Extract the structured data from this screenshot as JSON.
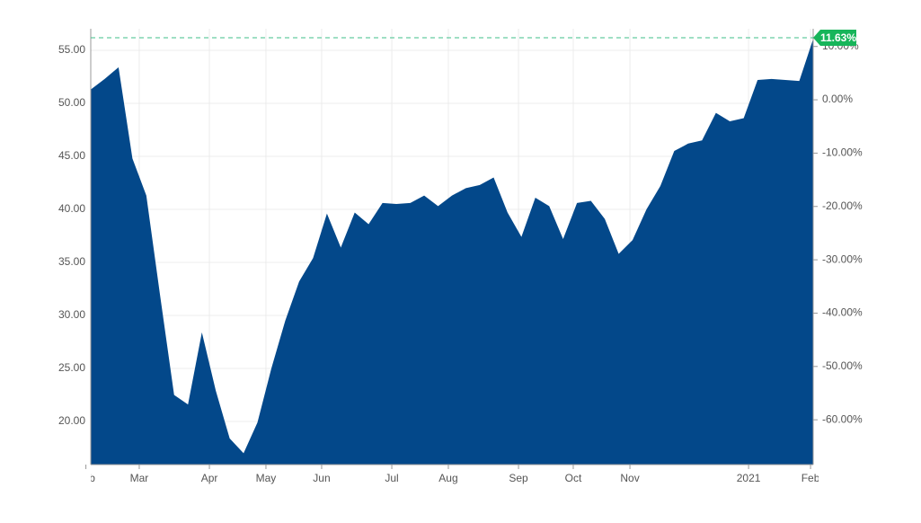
{
  "chart_data": {
    "type": "area",
    "x": [
      0,
      1,
      2,
      3,
      4,
      5,
      6,
      7,
      8,
      9,
      10,
      11,
      12,
      13,
      14,
      15,
      16,
      17,
      18,
      19,
      20,
      21,
      22,
      23,
      24,
      25,
      26,
      27,
      28,
      29,
      30,
      31,
      32,
      33,
      34,
      35,
      36,
      37,
      38,
      39,
      40,
      41,
      42,
      43,
      44,
      45,
      46,
      47,
      48,
      49,
      50,
      51,
      52
    ],
    "values": [
      51.3,
      52.3,
      53.4,
      44.8,
      41.3,
      31.8,
      22.5,
      21.6,
      28.4,
      22.9,
      18.4,
      17.0,
      19.9,
      25.0,
      29.5,
      33.2,
      35.4,
      39.6,
      36.4,
      39.7,
      38.6,
      40.6,
      40.5,
      40.6,
      41.3,
      40.3,
      41.3,
      42.0,
      42.3,
      43.0,
      39.7,
      37.4,
      41.1,
      40.3,
      37.2,
      40.6,
      40.8,
      39.1,
      35.8,
      37.1,
      40.0,
      42.2,
      45.5,
      46.2,
      46.5,
      49.1,
      48.3,
      48.6,
      52.2,
      52.3,
      52.2,
      52.1,
      56.07
    ],
    "color": "#03488a",
    "xlim": [
      0,
      52
    ],
    "xticks": [
      {
        "value": -0.35,
        "label": "Feb"
      },
      {
        "value": 3.49,
        "label": "Mar"
      },
      {
        "value": 8.54,
        "label": "Apr"
      },
      {
        "value": 12.61,
        "label": "May"
      },
      {
        "value": 16.62,
        "label": "Jun"
      },
      {
        "value": 21.67,
        "label": "Jul"
      },
      {
        "value": 25.74,
        "label": "Aug"
      },
      {
        "value": 30.79,
        "label": "Sep"
      },
      {
        "value": 34.73,
        "label": "Oct"
      },
      {
        "value": 38.81,
        "label": "Nov"
      },
      {
        "value": 47.35,
        "label": "2021"
      },
      {
        "value": 51.81,
        "label": "Feb"
      }
    ],
    "ylim": [
      15.93,
      57.03
    ],
    "yticks": [
      {
        "value": 20,
        "label": "20.00"
      },
      {
        "value": 25,
        "label": "25.00"
      },
      {
        "value": 30,
        "label": "30.00"
      },
      {
        "value": 35,
        "label": "35.00"
      },
      {
        "value": 40,
        "label": "40.00"
      },
      {
        "value": 45,
        "label": "45.00"
      },
      {
        "value": 50,
        "label": "50.00"
      },
      {
        "value": 55,
        "label": "55.00"
      }
    ],
    "y2lim": [
      -68.4,
      13.32
    ],
    "y2ticks": [
      {
        "value": -60,
        "label": "-60.00%"
      },
      {
        "value": -50,
        "label": "-50.00%"
      },
      {
        "value": -40,
        "label": "-40.00%"
      },
      {
        "value": -30,
        "label": "-30.00%"
      },
      {
        "value": -20,
        "label": "-20.00%"
      },
      {
        "value": -10,
        "label": "-10.00%"
      },
      {
        "value": 0,
        "label": "0.00%"
      },
      {
        "value": 10,
        "label": "10.00%"
      }
    ],
    "last_change": {
      "value": 11.63,
      "label": "11.63%"
    },
    "grid": true
  }
}
